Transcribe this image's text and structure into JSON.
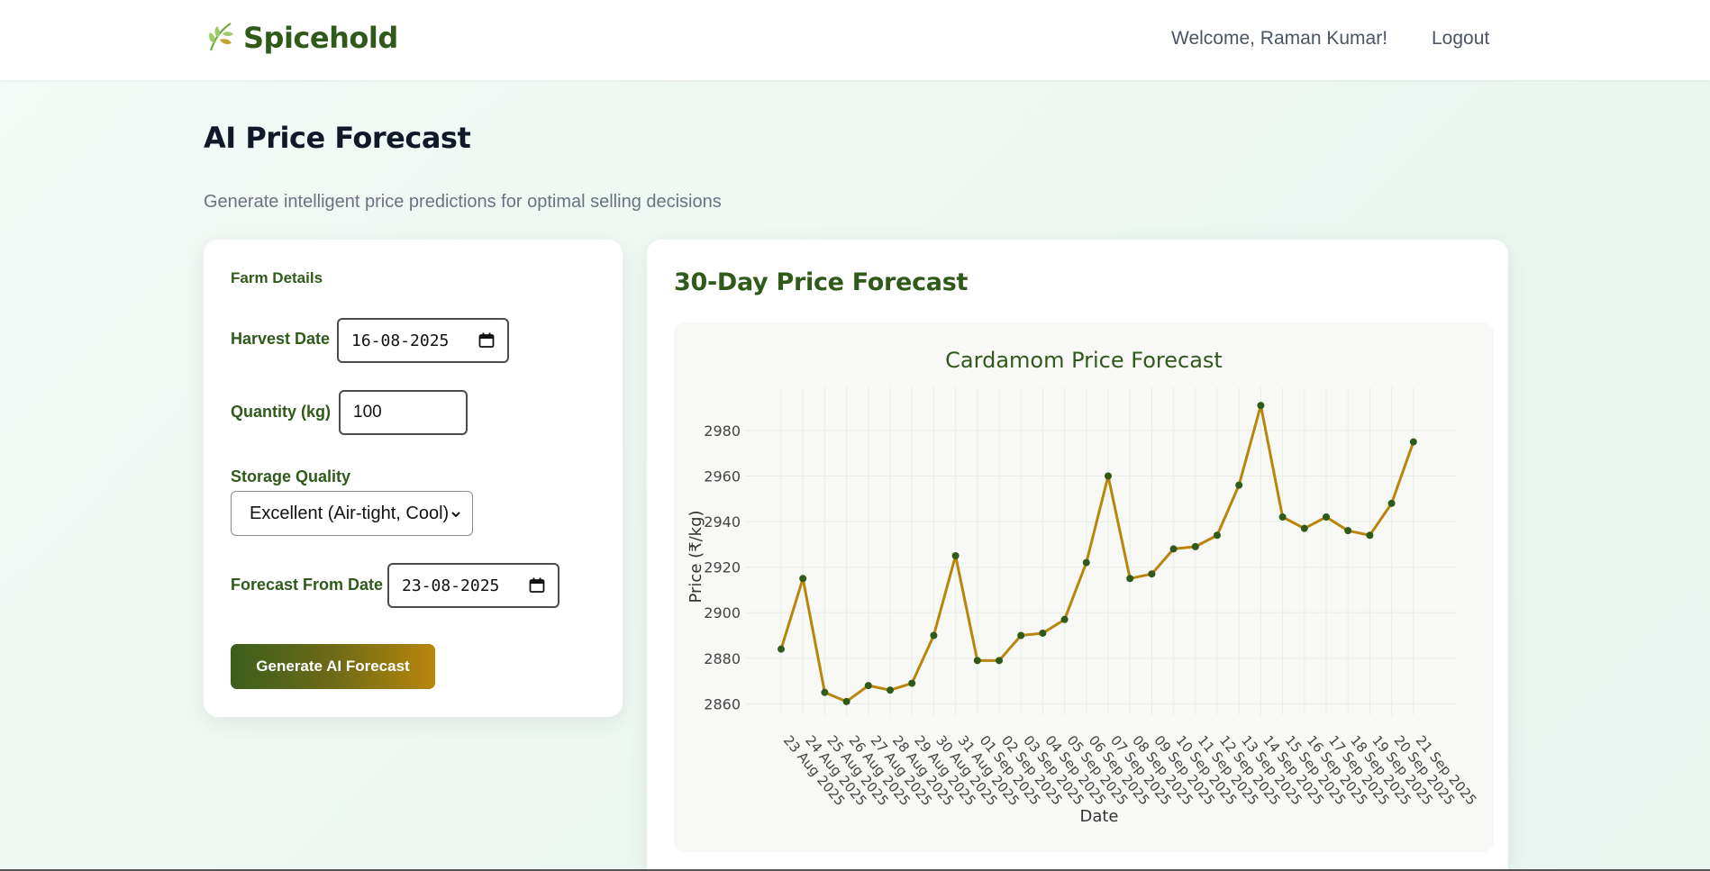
{
  "app": {
    "brand_name": "Spicehold",
    "welcome_text": "Welcome, Raman Kumar!",
    "logout_label": "Logout"
  },
  "page": {
    "title": "AI Price Forecast",
    "subtitle": "Generate intelligent price predictions for optimal selling decisions"
  },
  "form": {
    "section_title": "Farm Details",
    "harvest_date_label": "Harvest Date",
    "harvest_date_value": "16-08-2025",
    "quantity_label": "Quantity (kg)",
    "quantity_value": "100",
    "storage_quality_label": "Storage Quality",
    "storage_quality_value": "Excellent (Air-tight, Cool)",
    "forecast_from_label": "Forecast From Date",
    "forecast_from_value": "23-08-2025",
    "generate_button": "Generate AI Forecast"
  },
  "forecast": {
    "card_title": "30-Day Price Forecast"
  },
  "colors": {
    "brand_green": "#2f5a1a",
    "line_gold": "#b8860b",
    "marker_green": "#2f5a1a"
  },
  "chart_data": {
    "type": "line",
    "title": "Cardamom Price Forecast",
    "xlabel": "Date",
    "ylabel": "Price (₹/kg)",
    "ylim": [
      2855,
      2995
    ],
    "yticks": [
      2860,
      2880,
      2900,
      2920,
      2940,
      2960,
      2980
    ],
    "grid": true,
    "categories": [
      "23 Aug 2025",
      "24 Aug 2025",
      "25 Aug 2025",
      "26 Aug 2025",
      "27 Aug 2025",
      "28 Aug 2025",
      "29 Aug 2025",
      "30 Aug 2025",
      "31 Aug 2025",
      "01 Sep 2025",
      "02 Sep 2025",
      "03 Sep 2025",
      "04 Sep 2025",
      "05 Sep 2025",
      "06 Sep 2025",
      "07 Sep 2025",
      "08 Sep 2025",
      "09 Sep 2025",
      "10 Sep 2025",
      "11 Sep 2025",
      "12 Sep 2025",
      "13 Sep 2025",
      "14 Sep 2025",
      "15 Sep 2025",
      "16 Sep 2025",
      "17 Sep 2025",
      "18 Sep 2025",
      "19 Sep 2025",
      "20 Sep 2025",
      "21 Sep 2025"
    ],
    "values": [
      2884,
      2915,
      2865,
      2861,
      2868,
      2866,
      2869,
      2890,
      2925,
      2879,
      2879,
      2890,
      2891,
      2897,
      2922,
      2960,
      2915,
      2917,
      2928,
      2929,
      2934,
      2956,
      2991,
      2942,
      2937,
      2942,
      2936,
      2934,
      2948,
      2975
    ]
  }
}
